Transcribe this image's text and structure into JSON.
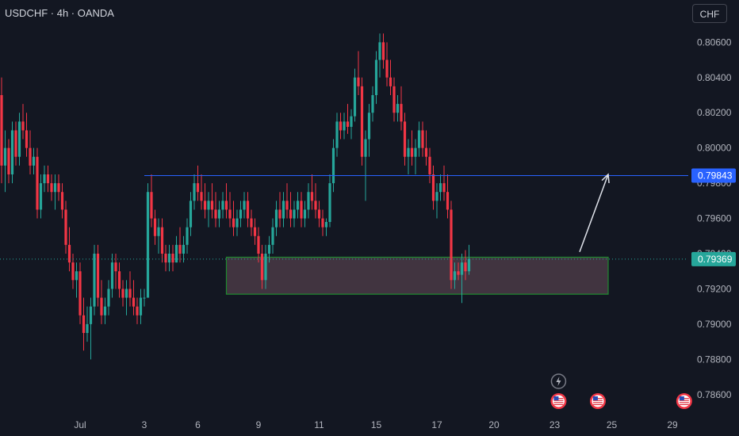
{
  "header": {
    "symbol_line": "USDCHF · 4h · OANDA",
    "currency_button": "CHF"
  },
  "colors": {
    "background": "#131722",
    "up": "#26a69a",
    "down": "#f23645",
    "level_line": "#2962ff",
    "zone_fill": "#4a3a45",
    "zone_border": "#1e8b2e",
    "axis_text": "#b2b5be",
    "arrow": "#e0e3eb"
  },
  "events": [
    {
      "icon": "lightning-icon",
      "date_index": 23.2,
      "row": 1
    },
    {
      "icon": "us-flag-icon",
      "date_index": 23.2,
      "row": 2
    },
    {
      "icon": "us-flag-icon",
      "date_index": 25.2,
      "row": 2
    },
    {
      "icon": "us-flag-icon",
      "date_index": 29.6,
      "row": 2
    }
  ],
  "chart_data": {
    "type": "candlestick",
    "title": "USDCHF · 4h · OANDA",
    "y_axis": {
      "ylim": [
        0.785,
        0.8075
      ],
      "ticks": [
        "0.78600",
        "0.78800",
        "0.79000",
        "0.79200",
        "0.79400",
        "0.79600",
        "0.79800",
        "0.80000",
        "0.80200",
        "0.80400",
        "0.80600"
      ],
      "tick_values": [
        0.786,
        0.788,
        0.79,
        0.792,
        0.794,
        0.796,
        0.798,
        0.8,
        0.802,
        0.804,
        0.806
      ]
    },
    "x_axis": {
      "ticks": [
        {
          "label": "Jul",
          "bar": 22
        },
        {
          "label": "3",
          "bar": 40
        },
        {
          "label": "6",
          "bar": 55
        },
        {
          "label": "9",
          "bar": 72
        },
        {
          "label": "11",
          "bar": 89
        },
        {
          "label": "15",
          "bar": 105
        },
        {
          "label": "17",
          "bar": 122
        },
        {
          "label": "20",
          "bar": 138
        },
        {
          "label": "23",
          "bar": 155
        },
        {
          "label": "25",
          "bar": 171
        },
        {
          "label": "29",
          "bar": 188
        }
      ]
    },
    "price_labels": [
      {
        "value": 0.79843,
        "label": "0.79843",
        "color": "#2962ff",
        "kind": "horizontal-line"
      },
      {
        "value": 0.79369,
        "label": "0.79369",
        "color": "#26a69a",
        "kind": "last-price"
      }
    ],
    "support_zone": {
      "top": 0.7938,
      "bottom": 0.7917,
      "from_bar": 63,
      "to_bar": 170
    },
    "arrow": {
      "from": {
        "bar": 162,
        "price": 0.7941
      },
      "to": {
        "bar": 170,
        "price": 0.7985
      }
    },
    "candles": [
      [
        0.803,
        0.804,
        0.798,
        0.799
      ],
      [
        0.799,
        0.801,
        0.7975,
        0.8
      ],
      [
        0.8,
        0.8005,
        0.798,
        0.7985
      ],
      [
        0.7985,
        0.8015,
        0.798,
        0.801
      ],
      [
        0.801,
        0.8015,
        0.799,
        0.7995
      ],
      [
        0.7995,
        0.802,
        0.799,
        0.8015
      ],
      [
        0.8015,
        0.8025,
        0.8005,
        0.801
      ],
      [
        0.801,
        0.802,
        0.7995,
        0.8
      ],
      [
        0.8,
        0.801,
        0.7985,
        0.799
      ],
      [
        0.799,
        0.8,
        0.7985,
        0.7995
      ],
      [
        0.7995,
        0.8,
        0.796,
        0.7965
      ],
      [
        0.7965,
        0.7985,
        0.796,
        0.798
      ],
      [
        0.798,
        0.799,
        0.7975,
        0.7985
      ],
      [
        0.7985,
        0.799,
        0.7975,
        0.798
      ],
      [
        0.798,
        0.7985,
        0.797,
        0.7975
      ],
      [
        0.7975,
        0.7985,
        0.7965,
        0.798
      ],
      [
        0.798,
        0.7985,
        0.797,
        0.7975
      ],
      [
        0.7975,
        0.798,
        0.796,
        0.7965
      ],
      [
        0.7965,
        0.797,
        0.794,
        0.7945
      ],
      [
        0.7945,
        0.7955,
        0.793,
        0.7935
      ],
      [
        0.7935,
        0.794,
        0.792,
        0.7925
      ],
      [
        0.7925,
        0.7935,
        0.7915,
        0.793
      ],
      [
        0.793,
        0.7935,
        0.79,
        0.7905
      ],
      [
        0.7905,
        0.7915,
        0.7885,
        0.7895
      ],
      [
        0.7895,
        0.791,
        0.789,
        0.79
      ],
      [
        0.79,
        0.7915,
        0.788,
        0.791
      ],
      [
        0.791,
        0.7945,
        0.7905,
        0.794
      ],
      [
        0.794,
        0.7945,
        0.791,
        0.7915
      ],
      [
        0.7915,
        0.7925,
        0.79,
        0.7905
      ],
      [
        0.7905,
        0.7915,
        0.79,
        0.791
      ],
      [
        0.791,
        0.7925,
        0.7905,
        0.792
      ],
      [
        0.792,
        0.794,
        0.7915,
        0.7935
      ],
      [
        0.7935,
        0.794,
        0.792,
        0.793
      ],
      [
        0.793,
        0.7935,
        0.7915,
        0.792
      ],
      [
        0.792,
        0.7925,
        0.791,
        0.7915
      ],
      [
        0.7915,
        0.7925,
        0.7905,
        0.792
      ],
      [
        0.792,
        0.793,
        0.791,
        0.7915
      ],
      [
        0.7915,
        0.7925,
        0.7905,
        0.791
      ],
      [
        0.791,
        0.7915,
        0.79,
        0.7905
      ],
      [
        0.7905,
        0.792,
        0.79,
        0.7915
      ],
      [
        0.7915,
        0.792,
        0.791,
        0.7915
      ],
      [
        0.7915,
        0.798,
        0.7915,
        0.7975
      ],
      [
        0.7975,
        0.7985,
        0.7955,
        0.796
      ],
      [
        0.796,
        0.7965,
        0.7945,
        0.795
      ],
      [
        0.795,
        0.796,
        0.794,
        0.7955
      ],
      [
        0.7955,
        0.796,
        0.7935,
        0.794
      ],
      [
        0.794,
        0.7945,
        0.793,
        0.7935
      ],
      [
        0.7935,
        0.7945,
        0.793,
        0.794
      ],
      [
        0.794,
        0.7945,
        0.793,
        0.7935
      ],
      [
        0.7935,
        0.795,
        0.7935,
        0.7945
      ],
      [
        0.7945,
        0.7955,
        0.7935,
        0.794
      ],
      [
        0.794,
        0.795,
        0.7935,
        0.7945
      ],
      [
        0.7945,
        0.796,
        0.794,
        0.7955
      ],
      [
        0.7955,
        0.7975,
        0.795,
        0.797
      ],
      [
        0.797,
        0.7985,
        0.7965,
        0.798
      ],
      [
        0.798,
        0.799,
        0.797,
        0.7975
      ],
      [
        0.7975,
        0.7985,
        0.7965,
        0.797
      ],
      [
        0.797,
        0.798,
        0.796,
        0.7965
      ],
      [
        0.7965,
        0.7975,
        0.7955,
        0.797
      ],
      [
        0.797,
        0.798,
        0.796,
        0.7965
      ],
      [
        0.7965,
        0.7975,
        0.7955,
        0.796
      ],
      [
        0.796,
        0.797,
        0.7955,
        0.7965
      ],
      [
        0.7965,
        0.7975,
        0.796,
        0.797
      ],
      [
        0.797,
        0.798,
        0.796,
        0.7965
      ],
      [
        0.7965,
        0.7975,
        0.7955,
        0.796
      ],
      [
        0.796,
        0.797,
        0.795,
        0.7955
      ],
      [
        0.7955,
        0.7965,
        0.795,
        0.796
      ],
      [
        0.796,
        0.797,
        0.7955,
        0.7965
      ],
      [
        0.7965,
        0.7975,
        0.796,
        0.797
      ],
      [
        0.797,
        0.7975,
        0.7955,
        0.796
      ],
      [
        0.796,
        0.7965,
        0.795,
        0.7955
      ],
      [
        0.7955,
        0.796,
        0.7945,
        0.795
      ],
      [
        0.795,
        0.7955,
        0.7935,
        0.794
      ],
      [
        0.794,
        0.7945,
        0.792,
        0.7925
      ],
      [
        0.7925,
        0.7945,
        0.792,
        0.794
      ],
      [
        0.794,
        0.795,
        0.7935,
        0.7945
      ],
      [
        0.7945,
        0.796,
        0.794,
        0.7955
      ],
      [
        0.7955,
        0.797,
        0.795,
        0.7965
      ],
      [
        0.7965,
        0.7975,
        0.7955,
        0.796
      ],
      [
        0.796,
        0.7975,
        0.7955,
        0.797
      ],
      [
        0.797,
        0.798,
        0.796,
        0.7965
      ],
      [
        0.7965,
        0.7975,
        0.7955,
        0.796
      ],
      [
        0.796,
        0.797,
        0.7955,
        0.7965
      ],
      [
        0.7965,
        0.7975,
        0.796,
        0.797
      ],
      [
        0.797,
        0.7975,
        0.7955,
        0.796
      ],
      [
        0.796,
        0.797,
        0.7955,
        0.7965
      ],
      [
        0.7965,
        0.798,
        0.796,
        0.7975
      ],
      [
        0.7975,
        0.7985,
        0.7965,
        0.797
      ],
      [
        0.797,
        0.798,
        0.796,
        0.7965
      ],
      [
        0.7965,
        0.797,
        0.7955,
        0.796
      ],
      [
        0.796,
        0.7965,
        0.795,
        0.7955
      ],
      [
        0.7955,
        0.796,
        0.795,
        0.7958
      ],
      [
        0.7958,
        0.7985,
        0.7955,
        0.798
      ],
      [
        0.798,
        0.8005,
        0.7975,
        0.8
      ],
      [
        0.8,
        0.802,
        0.7995,
        0.8015
      ],
      [
        0.8015,
        0.802,
        0.8005,
        0.801
      ],
      [
        0.801,
        0.802,
        0.8005,
        0.8015
      ],
      [
        0.8015,
        0.8025,
        0.8008,
        0.8012
      ],
      [
        0.8012,
        0.8022,
        0.8005,
        0.8018
      ],
      [
        0.8018,
        0.8045,
        0.8015,
        0.804
      ],
      [
        0.804,
        0.8055,
        0.803,
        0.8035
      ],
      [
        0.8035,
        0.804,
        0.799,
        0.7995
      ],
      [
        0.7995,
        0.801,
        0.797,
        0.8005
      ],
      [
        0.8005,
        0.8025,
        0.7995,
        0.802
      ],
      [
        0.802,
        0.8035,
        0.8015,
        0.803
      ],
      [
        0.803,
        0.8055,
        0.8025,
        0.805
      ],
      [
        0.805,
        0.8065,
        0.804,
        0.806
      ],
      [
        0.806,
        0.8065,
        0.8045,
        0.805
      ],
      [
        0.805,
        0.806,
        0.8035,
        0.804
      ],
      [
        0.804,
        0.805,
        0.803,
        0.8035
      ],
      [
        0.8035,
        0.804,
        0.8015,
        0.802
      ],
      [
        0.802,
        0.803,
        0.8015,
        0.8025
      ],
      [
        0.8025,
        0.8035,
        0.801,
        0.8015
      ],
      [
        0.8015,
        0.802,
        0.799,
        0.7995
      ],
      [
        0.7995,
        0.8005,
        0.7985,
        0.8
      ],
      [
        0.8,
        0.801,
        0.799,
        0.7995
      ],
      [
        0.7995,
        0.8005,
        0.7985,
        0.8
      ],
      [
        0.8,
        0.8015,
        0.7995,
        0.801
      ],
      [
        0.801,
        0.8015,
        0.7995,
        0.8
      ],
      [
        0.8,
        0.801,
        0.799,
        0.7995
      ],
      [
        0.7995,
        0.8,
        0.798,
        0.7985
      ],
      [
        0.7985,
        0.799,
        0.7965,
        0.797
      ],
      [
        0.797,
        0.798,
        0.796,
        0.7975
      ],
      [
        0.7975,
        0.7985,
        0.797,
        0.798
      ],
      [
        0.798,
        0.799,
        0.797,
        0.7975
      ],
      [
        0.7975,
        0.7985,
        0.796,
        0.7965
      ],
      [
        0.7965,
        0.797,
        0.792,
        0.7925
      ],
      [
        0.7925,
        0.7935,
        0.792,
        0.793
      ],
      [
        0.793,
        0.7935,
        0.7925,
        0.7928
      ],
      [
        0.7928,
        0.794,
        0.7912,
        0.7935
      ],
      [
        0.7935,
        0.7942,
        0.7925,
        0.793
      ],
      [
        0.793,
        0.7945,
        0.7928,
        0.7937
      ]
    ]
  }
}
